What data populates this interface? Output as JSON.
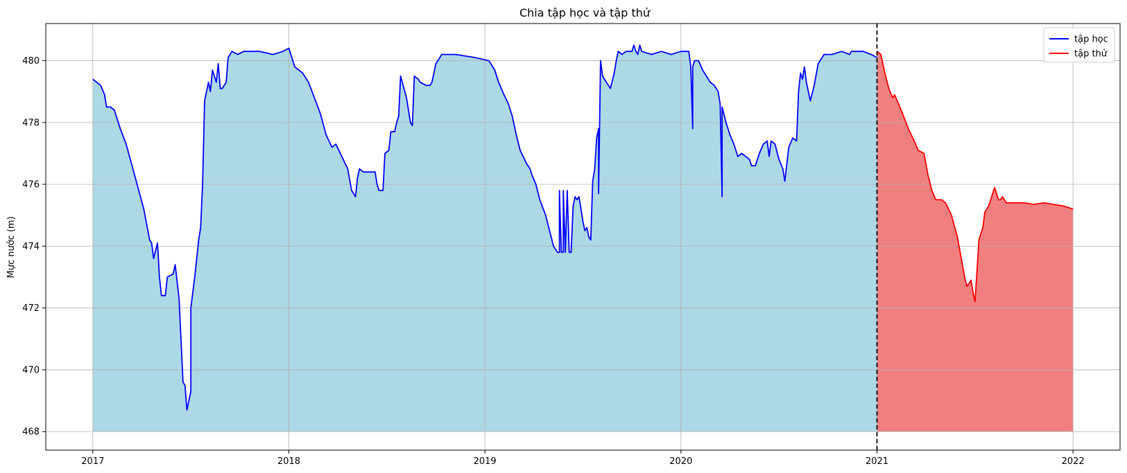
{
  "chart_data": {
    "type": "area",
    "title": "Chia tập học và tập thử",
    "xlabel": "",
    "ylabel": "Mực nước (m)",
    "xlim": [
      2016.76,
      2022.24
    ],
    "ylim": [
      467.4,
      481.2
    ],
    "x_ticks": [
      2017,
      2018,
      2019,
      2020,
      2021,
      2022
    ],
    "y_ticks": [
      468,
      470,
      472,
      474,
      476,
      478,
      480
    ],
    "grid": true,
    "legend_position": "top-right",
    "fill_baseline": 468,
    "split_x": 2021.0,
    "series": [
      {
        "name": "tập học",
        "line_color": "#0000ff",
        "fill_color": "#add8e6",
        "points": [
          [
            2017.0,
            479.4
          ],
          [
            2017.04,
            479.2
          ],
          [
            2017.06,
            478.9
          ],
          [
            2017.07,
            478.5
          ],
          [
            2017.09,
            478.5
          ],
          [
            2017.11,
            478.4
          ],
          [
            2017.14,
            477.8
          ],
          [
            2017.17,
            477.3
          ],
          [
            2017.2,
            476.6
          ],
          [
            2017.23,
            475.9
          ],
          [
            2017.26,
            475.2
          ],
          [
            2017.29,
            474.2
          ],
          [
            2017.3,
            474.1
          ],
          [
            2017.31,
            473.6
          ],
          [
            2017.33,
            474.1
          ],
          [
            2017.34,
            473.0
          ],
          [
            2017.35,
            472.4
          ],
          [
            2017.37,
            472.4
          ],
          [
            2017.38,
            473.0
          ],
          [
            2017.41,
            473.1
          ],
          [
            2017.42,
            473.4
          ],
          [
            2017.44,
            472.3
          ],
          [
            2017.46,
            469.6
          ],
          [
            2017.47,
            469.5
          ],
          [
            2017.48,
            468.7
          ],
          [
            2017.5,
            469.3
          ],
          [
            2017.5,
            472.0
          ],
          [
            2017.52,
            473.0
          ],
          [
            2017.54,
            474.2
          ],
          [
            2017.55,
            474.6
          ],
          [
            2017.56,
            476.0
          ],
          [
            2017.57,
            478.7
          ],
          [
            2017.59,
            479.3
          ],
          [
            2017.6,
            479.0
          ],
          [
            2017.61,
            479.7
          ],
          [
            2017.63,
            479.3
          ],
          [
            2017.64,
            479.9
          ],
          [
            2017.65,
            479.1
          ],
          [
            2017.66,
            479.1
          ],
          [
            2017.68,
            479.3
          ],
          [
            2017.69,
            480.1
          ],
          [
            2017.71,
            480.3
          ],
          [
            2017.74,
            480.2
          ],
          [
            2017.77,
            480.3
          ],
          [
            2017.85,
            480.3
          ],
          [
            2017.92,
            480.2
          ],
          [
            2017.97,
            480.3
          ],
          [
            2018.0,
            480.4
          ],
          [
            2018.03,
            479.8
          ],
          [
            2018.07,
            479.6
          ],
          [
            2018.1,
            479.3
          ],
          [
            2018.13,
            478.8
          ],
          [
            2018.16,
            478.3
          ],
          [
            2018.19,
            477.6
          ],
          [
            2018.22,
            477.2
          ],
          [
            2018.24,
            477.3
          ],
          [
            2018.27,
            476.9
          ],
          [
            2018.3,
            476.5
          ],
          [
            2018.32,
            475.8
          ],
          [
            2018.34,
            475.6
          ],
          [
            2018.35,
            476.2
          ],
          [
            2018.36,
            476.5
          ],
          [
            2018.38,
            476.4
          ],
          [
            2018.4,
            476.4
          ],
          [
            2018.42,
            476.4
          ],
          [
            2018.44,
            476.4
          ],
          [
            2018.45,
            476.0
          ],
          [
            2018.46,
            475.8
          ],
          [
            2018.48,
            475.8
          ],
          [
            2018.49,
            477.0
          ],
          [
            2018.51,
            477.1
          ],
          [
            2018.52,
            477.7
          ],
          [
            2018.54,
            477.7
          ],
          [
            2018.55,
            478.0
          ],
          [
            2018.56,
            478.2
          ],
          [
            2018.57,
            479.5
          ],
          [
            2018.6,
            478.8
          ],
          [
            2018.62,
            478.0
          ],
          [
            2018.63,
            477.9
          ],
          [
            2018.64,
            479.5
          ],
          [
            2018.66,
            479.4
          ],
          [
            2018.67,
            479.3
          ],
          [
            2018.7,
            479.2
          ],
          [
            2018.72,
            479.2
          ],
          [
            2018.73,
            479.3
          ],
          [
            2018.75,
            479.9
          ],
          [
            2018.78,
            480.2
          ],
          [
            2018.85,
            480.2
          ],
          [
            2018.95,
            480.1
          ],
          [
            2019.02,
            480.0
          ],
          [
            2019.05,
            479.7
          ],
          [
            2019.07,
            479.3
          ],
          [
            2019.09,
            479.0
          ],
          [
            2019.12,
            478.6
          ],
          [
            2019.14,
            478.2
          ],
          [
            2019.16,
            477.6
          ],
          [
            2019.18,
            477.1
          ],
          [
            2019.21,
            476.7
          ],
          [
            2019.23,
            476.5
          ],
          [
            2019.24,
            476.3
          ],
          [
            2019.26,
            476.0
          ],
          [
            2019.28,
            475.5
          ],
          [
            2019.31,
            475.0
          ],
          [
            2019.33,
            474.5
          ],
          [
            2019.35,
            474.0
          ],
          [
            2019.37,
            473.8
          ],
          [
            2019.38,
            473.8
          ],
          [
            2019.38,
            475.8
          ],
          [
            2019.39,
            473.8
          ],
          [
            2019.4,
            473.8
          ],
          [
            2019.4,
            475.8
          ],
          [
            2019.41,
            473.8
          ],
          [
            2019.42,
            475.8
          ],
          [
            2019.43,
            473.8
          ],
          [
            2019.44,
            473.8
          ],
          [
            2019.45,
            475.3
          ],
          [
            2019.46,
            475.6
          ],
          [
            2019.47,
            475.5
          ],
          [
            2019.48,
            475.6
          ],
          [
            2019.49,
            475.2
          ],
          [
            2019.5,
            474.8
          ],
          [
            2019.51,
            474.5
          ],
          [
            2019.52,
            474.6
          ],
          [
            2019.53,
            474.3
          ],
          [
            2019.54,
            474.2
          ],
          [
            2019.55,
            476.1
          ],
          [
            2019.56,
            476.5
          ],
          [
            2019.57,
            477.5
          ],
          [
            2019.58,
            477.8
          ],
          [
            2019.58,
            475.7
          ],
          [
            2019.59,
            480.0
          ],
          [
            2019.6,
            479.5
          ],
          [
            2019.62,
            479.3
          ],
          [
            2019.64,
            479.1
          ],
          [
            2019.66,
            479.6
          ],
          [
            2019.67,
            480.0
          ],
          [
            2019.68,
            480.3
          ],
          [
            2019.7,
            480.2
          ],
          [
            2019.72,
            480.3
          ],
          [
            2019.75,
            480.3
          ],
          [
            2019.76,
            480.5
          ],
          [
            2019.77,
            480.3
          ],
          [
            2019.78,
            480.2
          ],
          [
            2019.79,
            480.5
          ],
          [
            2019.8,
            480.3
          ],
          [
            2019.85,
            480.2
          ],
          [
            2019.9,
            480.3
          ],
          [
            2019.95,
            480.2
          ],
          [
            2020.0,
            480.3
          ],
          [
            2020.04,
            480.3
          ],
          [
            2020.05,
            479.8
          ],
          [
            2020.06,
            477.8
          ],
          [
            2020.06,
            479.8
          ],
          [
            2020.07,
            480.0
          ],
          [
            2020.09,
            480.0
          ],
          [
            2020.11,
            479.7
          ],
          [
            2020.13,
            479.5
          ],
          [
            2020.15,
            479.3
          ],
          [
            2020.17,
            479.2
          ],
          [
            2020.19,
            479.0
          ],
          [
            2020.2,
            478.6
          ],
          [
            2020.21,
            475.6
          ],
          [
            2020.21,
            478.5
          ],
          [
            2020.23,
            478.0
          ],
          [
            2020.25,
            477.6
          ],
          [
            2020.27,
            477.3
          ],
          [
            2020.29,
            476.9
          ],
          [
            2020.31,
            477.0
          ],
          [
            2020.33,
            476.9
          ],
          [
            2020.35,
            476.8
          ],
          [
            2020.36,
            476.6
          ],
          [
            2020.38,
            476.6
          ],
          [
            2020.4,
            477.0
          ],
          [
            2020.42,
            477.3
          ],
          [
            2020.44,
            477.4
          ],
          [
            2020.45,
            476.9
          ],
          [
            2020.46,
            477.4
          ],
          [
            2020.48,
            477.3
          ],
          [
            2020.5,
            476.8
          ],
          [
            2020.52,
            476.5
          ],
          [
            2020.53,
            476.1
          ],
          [
            2020.55,
            477.2
          ],
          [
            2020.57,
            477.5
          ],
          [
            2020.59,
            477.4
          ],
          [
            2020.6,
            479.0
          ],
          [
            2020.61,
            479.6
          ],
          [
            2020.62,
            479.4
          ],
          [
            2020.63,
            479.8
          ],
          [
            2020.64,
            479.3
          ],
          [
            2020.66,
            478.7
          ],
          [
            2020.68,
            479.2
          ],
          [
            2020.7,
            479.9
          ],
          [
            2020.73,
            480.2
          ],
          [
            2020.77,
            480.2
          ],
          [
            2020.82,
            480.3
          ],
          [
            2020.86,
            480.2
          ],
          [
            2020.87,
            480.3
          ],
          [
            2020.93,
            480.3
          ],
          [
            2020.97,
            480.2
          ],
          [
            2021.0,
            480.1
          ]
        ]
      },
      {
        "name": "tập thử",
        "line_color": "#ff0000",
        "fill_color": "#f08080",
        "points": [
          [
            2021.0,
            480.3
          ],
          [
            2021.02,
            480.2
          ],
          [
            2021.04,
            479.6
          ],
          [
            2021.06,
            479.1
          ],
          [
            2021.08,
            478.8
          ],
          [
            2021.09,
            478.9
          ],
          [
            2021.11,
            478.6
          ],
          [
            2021.13,
            478.3
          ],
          [
            2021.16,
            477.8
          ],
          [
            2021.19,
            477.4
          ],
          [
            2021.21,
            477.1
          ],
          [
            2021.24,
            477.0
          ],
          [
            2021.26,
            476.3
          ],
          [
            2021.28,
            475.8
          ],
          [
            2021.3,
            475.5
          ],
          [
            2021.33,
            475.5
          ],
          [
            2021.35,
            475.4
          ],
          [
            2021.38,
            475.0
          ],
          [
            2021.41,
            474.3
          ],
          [
            2021.43,
            473.6
          ],
          [
            2021.45,
            472.9
          ],
          [
            2021.46,
            472.7
          ],
          [
            2021.48,
            472.9
          ],
          [
            2021.49,
            472.5
          ],
          [
            2021.5,
            472.2
          ],
          [
            2021.51,
            473.2
          ],
          [
            2021.52,
            474.2
          ],
          [
            2021.54,
            474.6
          ],
          [
            2021.55,
            475.1
          ],
          [
            2021.56,
            475.2
          ],
          [
            2021.57,
            475.3
          ],
          [
            2021.59,
            475.7
          ],
          [
            2021.6,
            475.9
          ],
          [
            2021.62,
            475.5
          ],
          [
            2021.63,
            475.5
          ],
          [
            2021.64,
            475.6
          ],
          [
            2021.66,
            475.4
          ],
          [
            2021.7,
            475.4
          ],
          [
            2021.75,
            475.4
          ],
          [
            2021.8,
            475.35
          ],
          [
            2021.85,
            475.4
          ],
          [
            2021.9,
            475.35
          ],
          [
            2021.95,
            475.3
          ],
          [
            2022.0,
            475.2
          ]
        ]
      }
    ]
  }
}
